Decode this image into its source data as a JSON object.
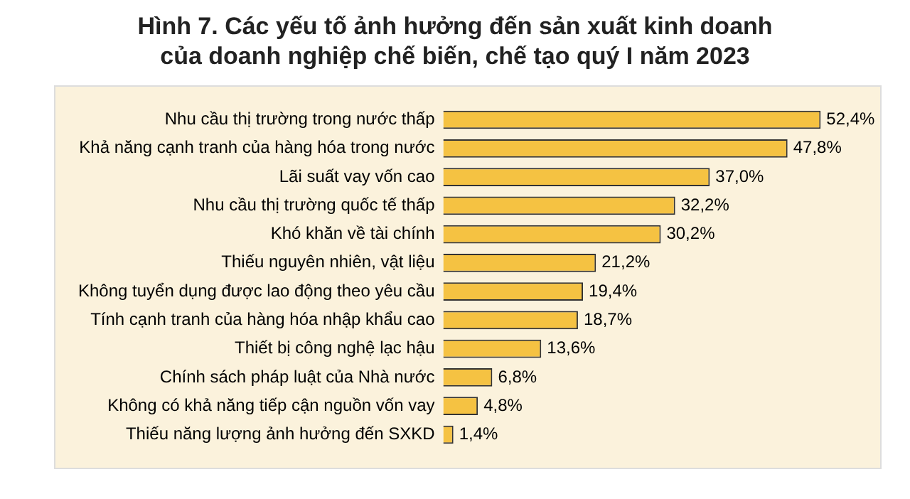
{
  "chart_data": {
    "type": "bar",
    "orientation": "horizontal",
    "title": "Hình 7. Các yếu tố ảnh hưởng đến sản xuất kinh doanh\ncủa doanh nghiệp chế biến, chế tạo quý I năm 2023",
    "categories": [
      "Nhu cầu thị trường trong nước thấp",
      "Khả năng cạnh tranh của hàng hóa trong nước",
      "Lãi suất vay vốn cao",
      "Nhu cầu thị trường quốc tế thấp",
      "Khó khăn về tài chính",
      "Thiếu nguyên nhiên, vật liệu",
      "Không tuyển dụng được lao động theo yêu cầu",
      "Tính cạnh tranh của hàng hóa nhập khẩu cao",
      "Thiết bị công nghệ lạc hậu",
      "Chính sách pháp luật của Nhà nước",
      "Không có khả năng tiếp cận nguồn vốn vay",
      "Thiếu năng lượng ảnh hưởng đến SXKD"
    ],
    "values": [
      52.4,
      47.8,
      37.0,
      32.2,
      30.2,
      21.2,
      19.4,
      18.7,
      13.6,
      6.8,
      4.8,
      1.4
    ],
    "value_labels": [
      "52,4%",
      "47,8%",
      "37,0%",
      "32,2%",
      "30,2%",
      "21,2%",
      "19,4%",
      "18,7%",
      "13,6%",
      "6,8%",
      "4,8%",
      "1,4%"
    ],
    "color": "#f5c242",
    "legend": false,
    "tick_labels": "y"
  }
}
